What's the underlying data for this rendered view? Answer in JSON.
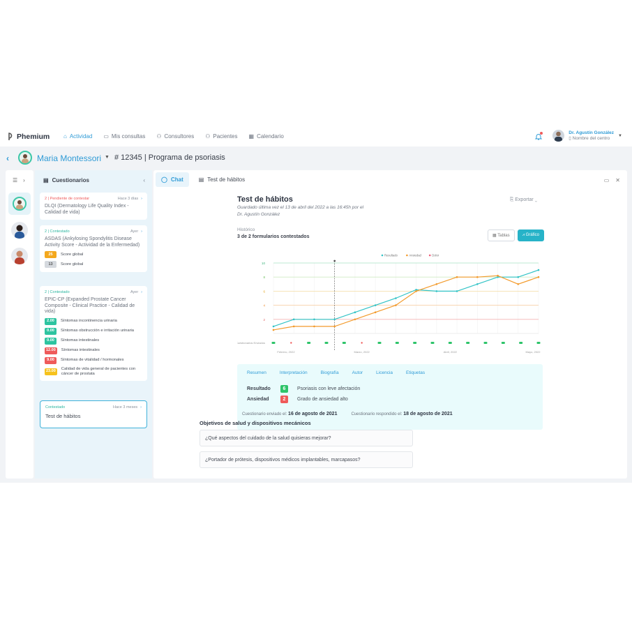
{
  "brand": "Phemium",
  "nav": [
    {
      "label": "Actividad",
      "icon": "activity-icon",
      "active": true
    },
    {
      "label": "Mis consultas",
      "icon": "consultations-icon",
      "active": false
    },
    {
      "label": "Consultores",
      "icon": "consultants-icon",
      "active": false
    },
    {
      "label": "Pacientes",
      "icon": "patients-icon",
      "active": false
    },
    {
      "label": "Calendario",
      "icon": "calendar-icon",
      "active": false
    }
  ],
  "user": {
    "name": "Dr. Agustín González",
    "center": "Nombre del centro"
  },
  "patient": {
    "name": "Maria Montessori",
    "program": "# 12345 | Programa de psoriasis"
  },
  "questionnaires": {
    "title": "Cuestionarios",
    "cards": [
      {
        "status": "2 | Pendiente de contestar",
        "when": "Hace 3 días",
        "title": "DLQI (Dermatology Life Quality Index - Calidad de vida)",
        "scores": []
      },
      {
        "status": "2 | Contestado",
        "when": "Ayer",
        "title": "ASDAS (Ankylosing Spondylitis Disease Activity Score - Actividad de la Enfermedad)",
        "scores": [
          {
            "value": "25",
            "label": "Score global",
            "color": "#f4a81d"
          },
          {
            "value": "13",
            "label": "Score global",
            "color": "#d5d9de"
          }
        ]
      },
      {
        "status": "2 | Contestado",
        "when": "Ayer",
        "title": "EPIC-CP (Expanded Prostate Cancer Composite - Clinical Practice - Calidad de vida)",
        "scores": [
          {
            "value": "2.00",
            "label": "Síntomas incontinencia urinaria",
            "color": "#2ec4a0"
          },
          {
            "value": "0.00",
            "label": "Síntomas obstrucción e irritación urinaria",
            "color": "#2ec4a0"
          },
          {
            "value": "0.00",
            "label": "Síntomas intestinales",
            "color": "#2ec4a0"
          },
          {
            "value": "12.00",
            "label": "Síntomas intestinales",
            "color": "#ef5a5a"
          },
          {
            "value": "9.00",
            "label": "Síntomas de vitalidad / hormonales",
            "color": "#ef5a5a"
          },
          {
            "value": "23.00",
            "label": "Calidad de vida general de pacientes con cáncer  de prostata",
            "color": "#f6c21c"
          }
        ]
      },
      {
        "status": "Contestado",
        "when": "Hace 3 meses",
        "title": "Test de hábitos",
        "scores": []
      }
    ]
  },
  "tabs": [
    "Chat",
    "Test de hábitos"
  ],
  "test": {
    "title": "Test de hábitos",
    "subtitle": "Guardado última vez el 13 de abril del 2022 a las 16:45h por el Dr. Agustín González",
    "export": "Exportar",
    "history_label": "Histórico",
    "answered": "3 de 2 formularios contestados",
    "view_tables": "Tablas",
    "view_chart": "Gráfico"
  },
  "chart_data": {
    "type": "line",
    "series": [
      {
        "name": "Resultado",
        "color": "#31c3c6",
        "values": [
          1.0,
          2.0,
          2.0,
          2.0,
          3.0,
          4.0,
          5.0,
          6.2,
          6.0,
          6.0,
          7.0,
          8.0,
          8.0,
          9.0
        ]
      },
      {
        "name": "Ansiedad",
        "color": "#f39a2b",
        "values": [
          0.5,
          1.0,
          1.0,
          1.0,
          2.0,
          3.0,
          4.0,
          6.0,
          7.0,
          8.0,
          8.0,
          8.2,
          7.0,
          8.0
        ]
      },
      {
        "name": "Dolor",
        "color": "#ef5a78",
        "values": []
      }
    ],
    "yticks": [
      2,
      4,
      6,
      8,
      10
    ],
    "ylim": [
      0,
      10
    ],
    "xlabels": [
      "Febrero, 2022",
      "Marzo, 2022",
      "Abril, 2022",
      "Mayo, 2022"
    ],
    "row_label": "Cuestionarios Enviados",
    "sent_markers": [
      "green",
      "red",
      "green",
      "green",
      "green",
      "red",
      "green",
      "green",
      "green",
      "green",
      "green",
      "green",
      "green",
      "green",
      "green",
      "green"
    ],
    "grid": true,
    "legend": "top-center"
  },
  "summary": {
    "tabs": [
      "Resumen",
      "Interpretación",
      "Biografía",
      "Autor",
      "Licencia",
      "Etiquetas"
    ],
    "rows": [
      {
        "key": "Resultado",
        "value": "6",
        "color": "#2ec46a",
        "text": "Psoriasis con leve afectación"
      },
      {
        "key": "Ansiedad",
        "value": "2",
        "color": "#ef5a5a",
        "text": "Grado de ansiedad alto"
      }
    ],
    "sent_label": "Cuestionario enviado el:",
    "sent_date": "16 de agosto de 2021",
    "answered_label": "Cuestionario respondido el:",
    "answered_date": "18 de agosto de 2021"
  },
  "goals": {
    "title": "Objetivos de salud y dispositivos mecánicos",
    "questions": [
      "¿Qué aspectos del cuidado de la salud quisieras mejorar?",
      "¿Portador de prótesis, dispositivos médicos implantables, marcapasos?"
    ]
  }
}
